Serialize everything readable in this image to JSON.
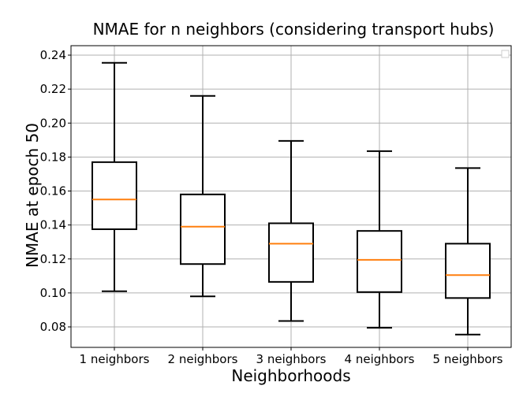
{
  "chart_data": {
    "type": "boxplot",
    "title": "NMAE for n neighbors (considering transport hubs)",
    "xlabel": "Neighborhoods",
    "ylabel": "NMAE at epoch 50",
    "categories": [
      "1 neighbors",
      "2 neighbors",
      "3 neighbors",
      "4 neighbors",
      "5 neighbors"
    ],
    "boxes": [
      {
        "category": "1 neighbors",
        "whisker_low": 0.101,
        "q1": 0.1375,
        "median": 0.155,
        "q3": 0.177,
        "whisker_high": 0.2355
      },
      {
        "category": "2 neighbors",
        "whisker_low": 0.098,
        "q1": 0.117,
        "median": 0.139,
        "q3": 0.158,
        "whisker_high": 0.216
      },
      {
        "category": "3 neighbors",
        "whisker_low": 0.0835,
        "q1": 0.1065,
        "median": 0.129,
        "q3": 0.141,
        "whisker_high": 0.1895
      },
      {
        "category": "4 neighbors",
        "whisker_low": 0.0795,
        "q1": 0.1005,
        "median": 0.1195,
        "q3": 0.1365,
        "whisker_high": 0.1835
      },
      {
        "category": "5 neighbors",
        "whisker_low": 0.0755,
        "q1": 0.097,
        "median": 0.1105,
        "q3": 0.129,
        "whisker_high": 0.1735
      }
    ],
    "yticks": [
      "0.08",
      "0.10",
      "0.12",
      "0.14",
      "0.16",
      "0.18",
      "0.20",
      "0.22",
      "0.24"
    ],
    "ylim": [
      0.0685,
      0.2445
    ],
    "grid": true,
    "legend": "top-right",
    "colors": {
      "box": "#000000",
      "median": "#ff7f0e",
      "grid": "#b0b0b0"
    }
  }
}
